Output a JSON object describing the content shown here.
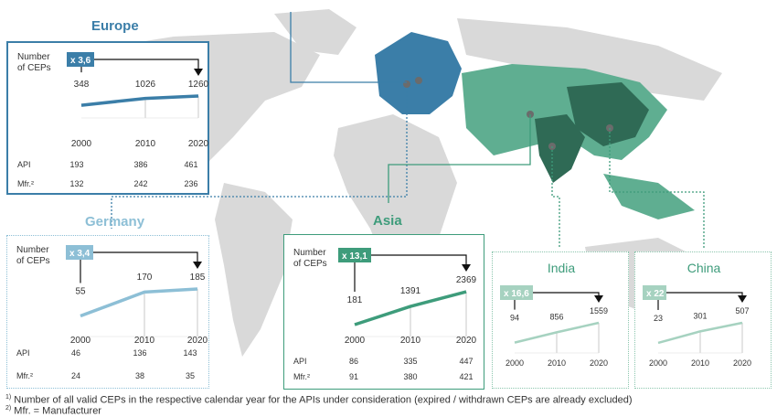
{
  "chart_data": [
    {
      "type": "line",
      "region": "Europe",
      "title": "Europe",
      "ylabel": "Number of CEPs",
      "multiplier": "x 3,6",
      "x": [
        "2000",
        "2010",
        "2020"
      ],
      "values": [
        348,
        1026,
        1260
      ],
      "labels": [
        "348",
        "1026",
        "1260"
      ],
      "rows": [
        {
          "label": "API",
          "values": [
            "193",
            "386",
            "461"
          ]
        },
        {
          "label": "Mfr.²",
          "values": [
            "132",
            "242",
            "236"
          ]
        }
      ],
      "color": "#3b7ea8"
    },
    {
      "type": "line",
      "region": "Germany",
      "title": "Germany",
      "ylabel": "Number of CEPs",
      "multiplier": "x 3,4",
      "x": [
        "2000",
        "2010",
        "2020"
      ],
      "values": [
        55,
        170,
        185
      ],
      "labels": [
        "55",
        "170",
        "185"
      ],
      "rows": [
        {
          "label": "API",
          "values": [
            "46",
            "136",
            "143"
          ]
        },
        {
          "label": "Mfr.²",
          "values": [
            "24",
            "38",
            "35"
          ]
        }
      ],
      "color": "#8dbfd6"
    },
    {
      "type": "line",
      "region": "Asia",
      "title": "Asia",
      "ylabel": "Number of CEPs",
      "multiplier": "x 13,1",
      "x": [
        "2000",
        "2010",
        "2020"
      ],
      "values": [
        181,
        1391,
        2369
      ],
      "labels": [
        "181",
        "1391",
        "2369"
      ],
      "rows": [
        {
          "label": "API",
          "values": [
            "86",
            "335",
            "447"
          ]
        },
        {
          "label": "Mfr.²",
          "values": [
            "91",
            "380",
            "421"
          ]
        }
      ],
      "color": "#3e9c7b"
    },
    {
      "type": "line",
      "region": "India",
      "title": "India",
      "multiplier": "x 16,6",
      "x": [
        "2000",
        "2010",
        "2020"
      ],
      "values": [
        94,
        856,
        1559
      ],
      "labels": [
        "94",
        "856",
        "1559"
      ],
      "color": "#a6d2c0"
    },
    {
      "type": "line",
      "region": "China",
      "title": "China",
      "multiplier": "x 22",
      "x": [
        "2000",
        "2010",
        "2020"
      ],
      "values": [
        23,
        301,
        507
      ],
      "labels": [
        "23",
        "301",
        "507"
      ],
      "color": "#a6d2c0"
    }
  ],
  "footnotes": {
    "note1_marker": "1)",
    "note1": "Number of all valid CEPs in the respective calendar year for the APIs under consideration (expired / withdrawn CEPs are already excluded)",
    "note2_marker": "2)",
    "note2": "Mfr. = Manufacturer"
  },
  "colors": {
    "europe": "#3b7ea8",
    "germany": "#8dbfd6",
    "asia": "#3e9c7b",
    "india": "#a6d2c0",
    "china": "#a6d2c0",
    "map_land": "#d9d9d9"
  }
}
